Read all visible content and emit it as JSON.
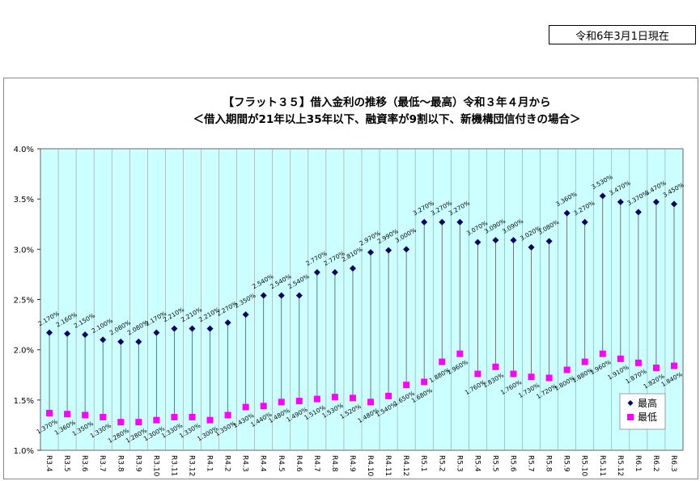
{
  "header": {
    "date_label": "令和6年3月1日現在"
  },
  "chart_data": {
    "type": "line",
    "title_line1": "【フラット３５】借入金利の推移（最低～最高）令和３年４月から",
    "title_line2": "＜借入期間が21年以上35年以下、融資率が9割以下、新機構団信付きの場合＞",
    "categories": [
      "R3.4",
      "R3.5",
      "R3.6",
      "R3.7",
      "R3.8",
      "R3.9",
      "R3.10",
      "R3.11",
      "R3.12",
      "R4.1",
      "R4.2",
      "R4.3",
      "R4.4",
      "R4.5",
      "R4.6",
      "R4.7",
      "R4.8",
      "R4.9",
      "R4.10",
      "R4.11",
      "R4.12",
      "R5.1",
      "R5.2",
      "R5.3",
      "R5.4",
      "R5.5",
      "R5.6",
      "R5.7",
      "R5.8",
      "R5.9",
      "R5.10",
      "R5.11",
      "R5.12",
      "R6.1",
      "R6.2",
      "R6.3"
    ],
    "series": [
      {
        "name": "最高",
        "color": "#000066",
        "values": [
          2.17,
          2.16,
          2.15,
          2.1,
          2.08,
          2.08,
          2.17,
          2.21,
          2.21,
          2.21,
          2.27,
          2.35,
          2.54,
          2.54,
          2.54,
          2.77,
          2.77,
          2.81,
          2.97,
          2.99,
          3.0,
          3.27,
          3.27,
          3.27,
          3.07,
          3.09,
          3.09,
          3.02,
          3.08,
          3.36,
          3.27,
          3.53,
          3.47,
          3.37,
          3.47,
          3.45
        ],
        "labels": [
          "2.170%",
          "2.160%",
          "2.150%",
          "2.100%",
          "2.080%",
          "2.080%",
          "2.170%",
          "2.210%",
          "2.210%",
          "2.210%",
          "2.270%",
          "2.350%",
          "2.540%",
          "2.540%",
          "2.540%",
          "2.770%",
          "2.770%",
          "2.810%",
          "2.970%",
          "2.990%",
          "3.000%",
          "3.270%",
          "3.270%",
          "3.270%",
          "3.070%",
          "3.090%",
          "3.090%",
          "3.020%",
          "3.080%",
          "3.360%",
          "3.270%",
          "3.530%",
          "3.470%",
          "3.370%",
          "3.470%",
          "3.450%"
        ]
      },
      {
        "name": "最低",
        "color": "#ff00ff",
        "values": [
          1.37,
          1.36,
          1.35,
          1.33,
          1.28,
          1.28,
          1.3,
          1.33,
          1.33,
          1.3,
          1.35,
          1.43,
          1.44,
          1.48,
          1.49,
          1.51,
          1.53,
          1.52,
          1.48,
          1.54,
          1.65,
          1.68,
          1.88,
          1.96,
          1.76,
          1.83,
          1.76,
          1.73,
          1.72,
          1.8,
          1.88,
          1.96,
          1.91,
          1.87,
          1.82,
          1.84
        ],
        "labels": [
          "1.370%",
          "1.360%",
          "1.350%",
          "1.330%",
          "1.280%",
          "1.280%",
          "1.300%",
          "1.330%",
          "1.330%",
          "1.300%",
          "1.350%",
          "1.430%",
          "1.440%",
          "1.480%",
          "1.490%",
          "1.510%",
          "1.530%",
          "1.520%",
          "1.480%",
          "1.540%",
          "1.650%",
          "1.680%",
          "1.880%",
          "1.960%",
          "1.760%",
          "1.830%",
          "1.760%",
          "1.730%",
          "1.720%",
          "1.800%",
          "1.880%",
          "1.960%",
          "1.910%",
          "1.870%",
          "1.820%",
          "1.840%"
        ]
      }
    ],
    "ylim": [
      1.0,
      4.0
    ],
    "yticks": [
      "1.0%",
      "1.5%",
      "2.0%",
      "2.5%",
      "3.0%",
      "3.5%",
      "4.0%"
    ],
    "legend_position": "bottom-right"
  }
}
